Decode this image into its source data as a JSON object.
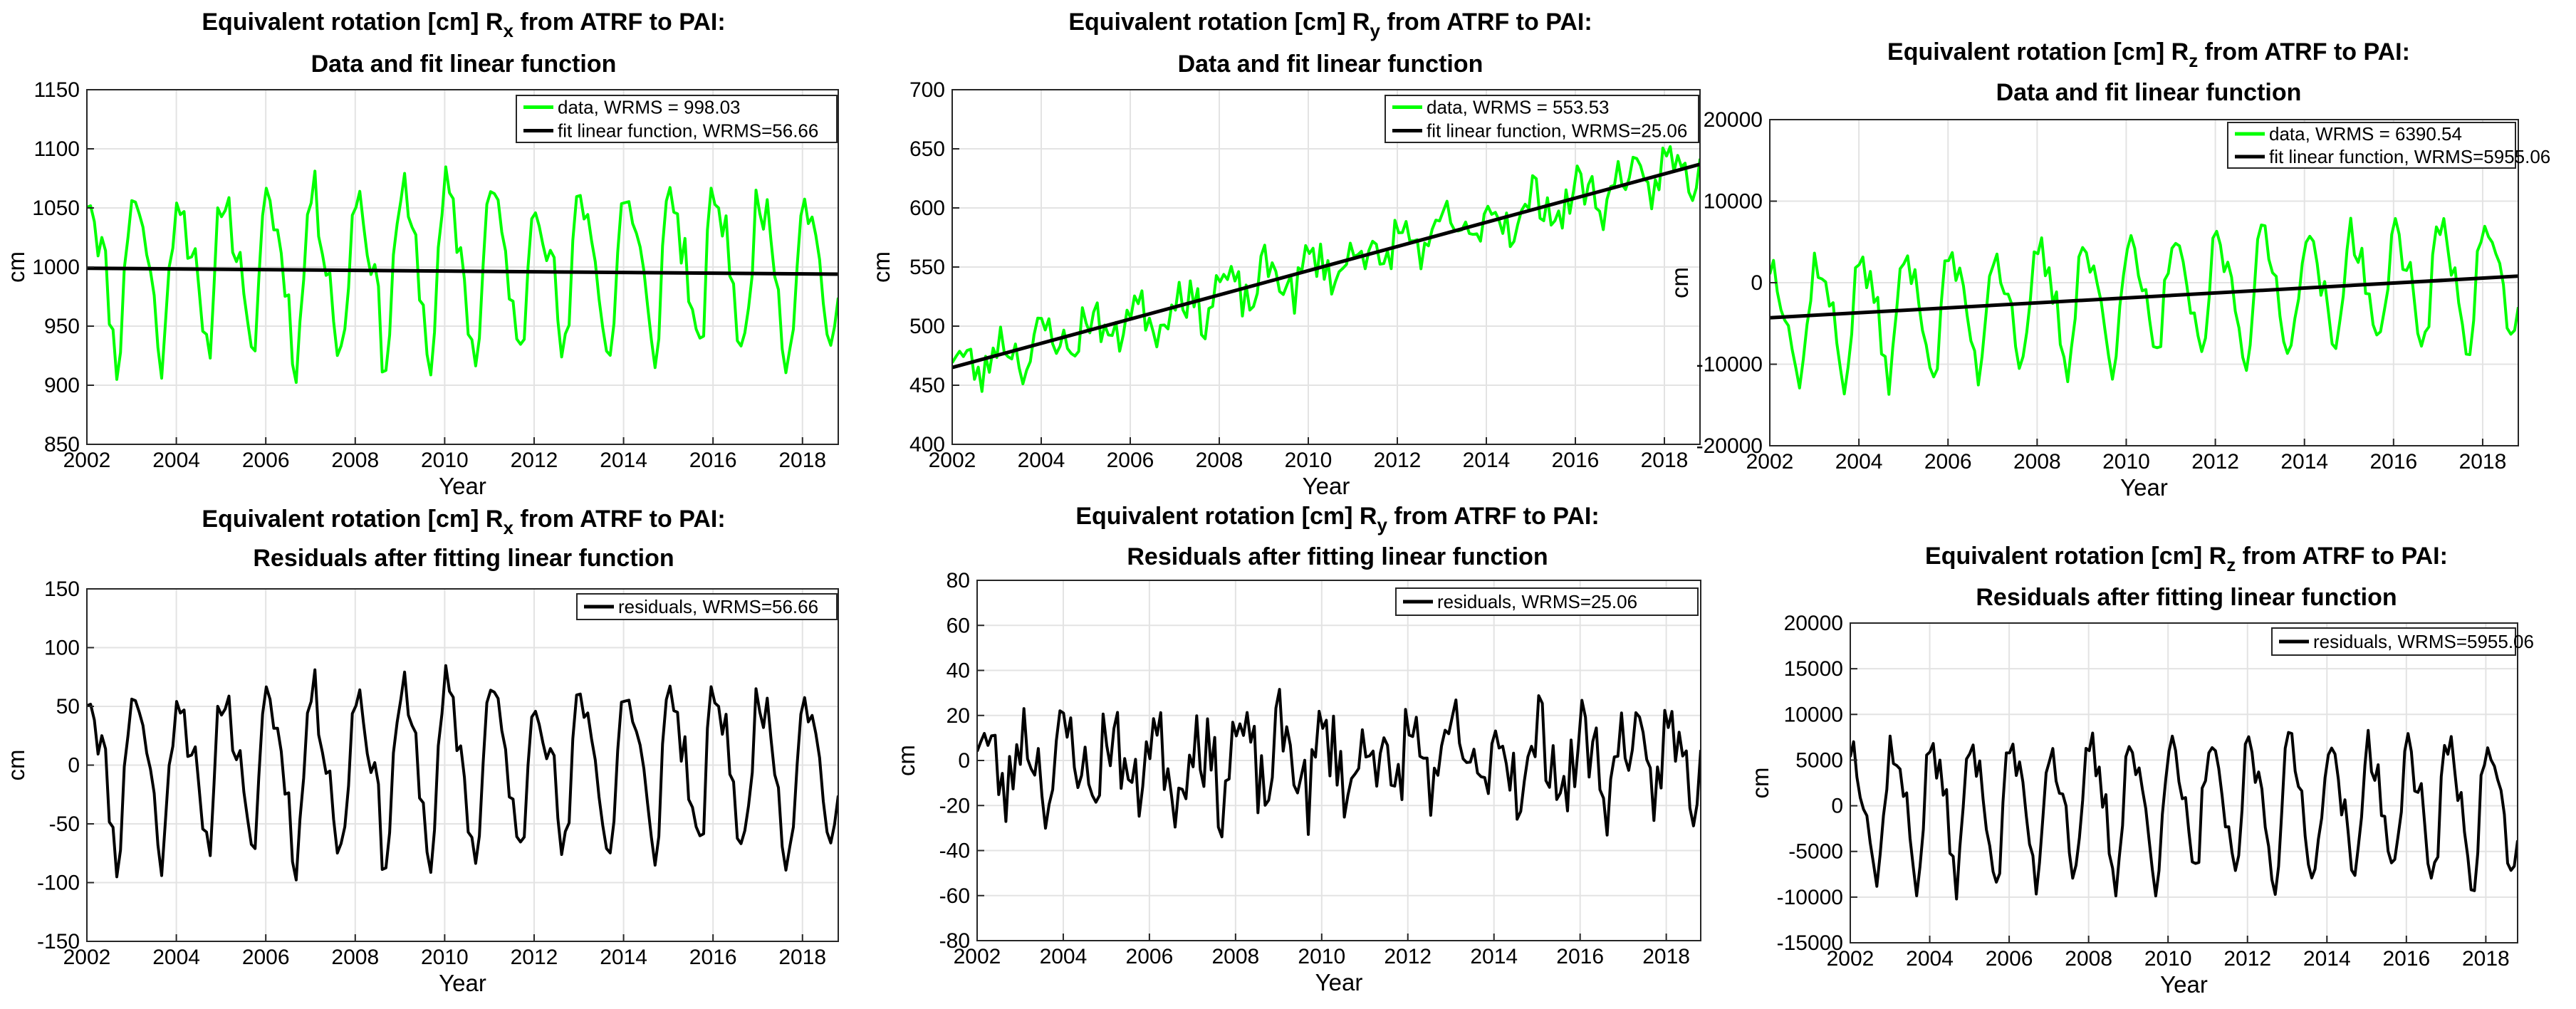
{
  "chart_data": [
    {
      "type": "line",
      "title_lines": [
        "Equivalent rotation [cm] R_x from ATRF to PAI:",
        "Data and fit linear function"
      ],
      "subscript": "x",
      "xlabel": "Year",
      "ylabel": "cm",
      "xlim": [
        2002,
        2018.8
      ],
      "ylim": [
        850,
        1150
      ],
      "xticks": [
        2002,
        2004,
        2006,
        2008,
        2010,
        2012,
        2014,
        2016,
        2018
      ],
      "yticks": [
        850,
        900,
        950,
        1000,
        1050,
        1100,
        1150
      ],
      "legend_position": "top-right",
      "series": [
        {
          "name": "data, WRMS = 998.03",
          "color": "#00ff00",
          "kind": "data",
          "center": 1000,
          "amp": 75,
          "noise": 22,
          "seed": 11
        },
        {
          "name": "fit linear function, WRMS=56.66",
          "color": "#000000",
          "kind": "fit",
          "y0": 999,
          "y1": 994
        }
      ]
    },
    {
      "type": "line",
      "title_lines": [
        "Equivalent rotation [cm] R_y from ATRF to PAI:",
        "Data and fit linear function"
      ],
      "subscript": "y",
      "xlabel": "Year",
      "ylabel": "cm",
      "xlim": [
        2002,
        2018.8
      ],
      "ylim": [
        400,
        700
      ],
      "xticks": [
        2002,
        2004,
        2006,
        2008,
        2010,
        2012,
        2014,
        2016,
        2018
      ],
      "yticks": [
        400,
        450,
        500,
        550,
        600,
        650,
        700
      ],
      "legend_position": "top-right",
      "series": [
        {
          "name": "data, WRMS = 553.53",
          "color": "#00ff00",
          "kind": "data",
          "trend": [
            465,
            637
          ],
          "amp": 16,
          "noise": 18,
          "seed": 23
        },
        {
          "name": "fit linear function, WRMS=25.06",
          "color": "#000000",
          "kind": "fit",
          "y0": 465,
          "y1": 637
        }
      ]
    },
    {
      "type": "line",
      "title_lines": [
        "Equivalent rotation [cm] R_z from ATRF to PAI:",
        "Data and fit linear function"
      ],
      "subscript": "z",
      "xlabel": "Year",
      "ylabel": "cm",
      "xlim": [
        2002,
        2018.8
      ],
      "ylim": [
        -20000,
        20000
      ],
      "xticks": [
        2002,
        2004,
        2006,
        2008,
        2010,
        2012,
        2014,
        2016,
        2018
      ],
      "yticks": [
        -20000,
        -10000,
        0,
        10000,
        20000
      ],
      "legend_position": "top-right",
      "series": [
        {
          "name": "data, WRMS = 6390.54",
          "color": "#00ff00",
          "kind": "data",
          "trend": [
            -4300,
            800
          ],
          "amp": 7800,
          "noise": 2200,
          "seed": 37
        },
        {
          "name": "fit linear function, WRMS=5955.06",
          "color": "#000000",
          "kind": "fit",
          "y0": -4300,
          "y1": 800
        }
      ]
    },
    {
      "type": "line",
      "title_lines": [
        "Equivalent rotation [cm] R_x from ATRF to PAI:",
        "Residuals after fitting linear function"
      ],
      "subscript": "x",
      "xlabel": "Year",
      "ylabel": "cm",
      "xlim": [
        2002,
        2018.8
      ],
      "ylim": [
        -150,
        150
      ],
      "xticks": [
        2002,
        2004,
        2006,
        2008,
        2010,
        2012,
        2014,
        2016,
        2018
      ],
      "yticks": [
        -150,
        -100,
        -50,
        0,
        50,
        100,
        150
      ],
      "legend_position": "top-right",
      "series": [
        {
          "name": "residuals, WRMS=56.66",
          "color": "#000000",
          "kind": "data",
          "center": 0,
          "amp": 75,
          "noise": 22,
          "seed": 11
        }
      ]
    },
    {
      "type": "line",
      "title_lines": [
        "Equivalent rotation [cm] R_y from ATRF to PAI:",
        "Residuals after fitting linear function"
      ],
      "subscript": "y",
      "xlabel": "Year",
      "ylabel": "cm",
      "xlim": [
        2002,
        2018.8
      ],
      "ylim": [
        -80,
        80
      ],
      "xticks": [
        2002,
        2004,
        2006,
        2008,
        2010,
        2012,
        2014,
        2016,
        2018
      ],
      "yticks": [
        -80,
        -60,
        -40,
        -20,
        0,
        20,
        40,
        60,
        80
      ],
      "legend_position": "top-right",
      "series": [
        {
          "name": "residuals, WRMS=25.06",
          "color": "#000000",
          "kind": "data",
          "center": 0,
          "amp": 16,
          "noise": 18,
          "seed": 23
        }
      ]
    },
    {
      "type": "line",
      "title_lines": [
        "Equivalent rotation [cm] R_z from ATRF to PAI:",
        "Residuals after fitting linear function"
      ],
      "subscript": "z",
      "xlabel": "Year",
      "ylabel": "cm",
      "xlim": [
        2002,
        2018.8
      ],
      "ylim": [
        -15000,
        20000
      ],
      "xticks": [
        2002,
        2004,
        2006,
        2008,
        2010,
        2012,
        2014,
        2016,
        2018
      ],
      "yticks": [
        -15000,
        -10000,
        -5000,
        0,
        5000,
        10000,
        15000,
        20000
      ],
      "legend_position": "top-right",
      "series": [
        {
          "name": "residuals, WRMS=5955.06",
          "color": "#000000",
          "kind": "data",
          "center": 0,
          "amp": 7800,
          "noise": 2200,
          "seed": 37
        }
      ]
    }
  ]
}
